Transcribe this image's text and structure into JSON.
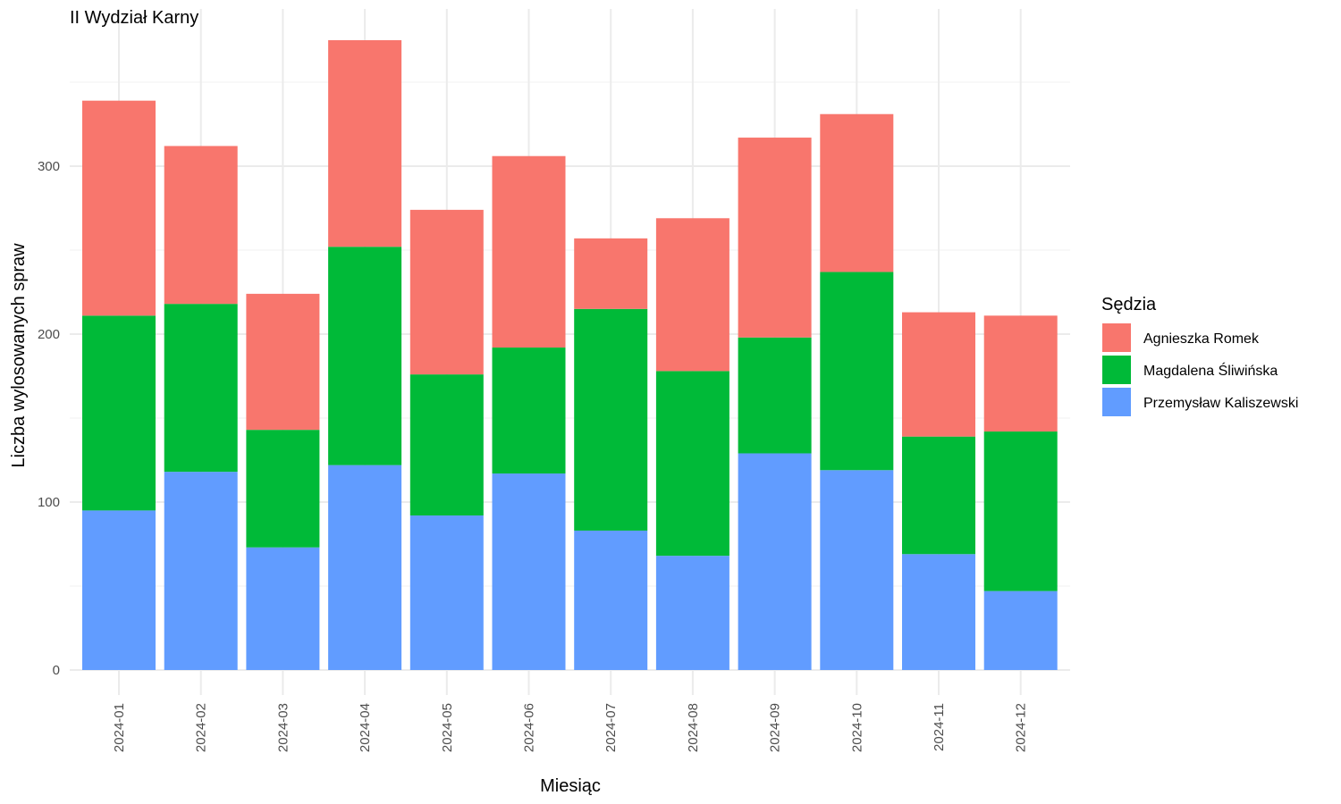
{
  "chart_data": {
    "type": "bar",
    "stacked": true,
    "title": "II Wydział Karny",
    "xlabel": "Miesiąc",
    "ylabel": "Liczba wylosowanych spraw",
    "ylim": [
      0,
      400
    ],
    "yticks": [
      0,
      100,
      200,
      300
    ],
    "grid": true,
    "legend_title": "Sędzia",
    "legend_position": "right",
    "categories": [
      "2024-01",
      "2024-02",
      "2024-03",
      "2024-04",
      "2024-05",
      "2024-06",
      "2024-07",
      "2024-08",
      "2024-09",
      "2024-10",
      "2024-11",
      "2024-12"
    ],
    "series": [
      {
        "name": "Przemysław Kaliszewski",
        "color": "#619CFF",
        "values": [
          95,
          118,
          73,
          122,
          92,
          117,
          83,
          68,
          129,
          119,
          69,
          47
        ]
      },
      {
        "name": "Magdalena Śliwińska",
        "color": "#00BA38",
        "values": [
          116,
          100,
          70,
          130,
          84,
          75,
          132,
          110,
          69,
          118,
          70,
          95
        ]
      },
      {
        "name": "Agnieszka Romek",
        "color": "#F8766D",
        "values": [
          128,
          94,
          81,
          123,
          98,
          114,
          42,
          91,
          119,
          94,
          74,
          69
        ]
      }
    ],
    "legend_order": [
      "Agnieszka Romek",
      "Magdalena Śliwińska",
      "Przemysław Kaliszewski"
    ]
  }
}
